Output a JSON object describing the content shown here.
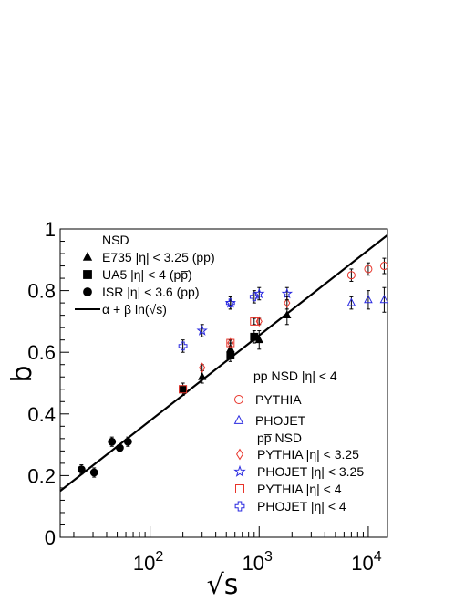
{
  "chart_data": {
    "type": "scatter",
    "title": "",
    "xlabel": "√s",
    "ylabel": "b",
    "xscale": "log",
    "xlim": [
      15,
      15000
    ],
    "ylim": [
      0,
      1
    ],
    "grid": false,
    "xticks": [
      {
        "value": 100,
        "base": "10",
        "exp": "2"
      },
      {
        "value": 1000,
        "base": "10",
        "exp": "3"
      },
      {
        "value": 10000,
        "base": "10",
        "exp": "4"
      }
    ],
    "yticks": [
      {
        "value": 0,
        "label": "0"
      },
      {
        "value": 0.2,
        "label": "0.2"
      },
      {
        "value": 0.4,
        "label": "0.4"
      },
      {
        "value": 0.6,
        "label": "0.6"
      },
      {
        "value": 0.8,
        "label": "0.8"
      },
      {
        "value": 1,
        "label": "1"
      }
    ],
    "fit_line": {
      "label": "α + β  ln(√s)",
      "x": [
        15,
        15000
      ],
      "y": [
        0.15,
        0.98
      ],
      "color": "#000000"
    },
    "series": [
      {
        "name": "E735 |η| < 3.25 (pp̅)",
        "marker": "triangle-filled",
        "color": "#000000",
        "x": [
          300,
          546,
          1000,
          1800
        ],
        "y": [
          0.52,
          0.61,
          0.64,
          0.72
        ],
        "err": [
          0.02,
          0.02,
          0.03,
          0.03
        ]
      },
      {
        "name": "UA5  |η| < 4 (pp̅)",
        "marker": "square-filled",
        "color": "#000000",
        "x": [
          200,
          546,
          900
        ],
        "y": [
          0.48,
          0.59,
          0.65
        ],
        "err": [
          0.02,
          0.02,
          0.02
        ]
      },
      {
        "name": "ISR  |η| < 3.6 (pp)",
        "marker": "circle-filled",
        "color": "#000000",
        "x": [
          23.5,
          30.7,
          44.7,
          52.8,
          62.7
        ],
        "y": [
          0.22,
          0.21,
          0.31,
          0.29,
          0.31
        ],
        "err": [
          0.015,
          0.015,
          0.015,
          0.01,
          0.015
        ]
      },
      {
        "name": "PYTHIA",
        "marker": "circle-open",
        "color": "#e8342a",
        "x": [
          7000,
          10000,
          14000
        ],
        "y": [
          0.85,
          0.87,
          0.88
        ],
        "err": [
          0.02,
          0.02,
          0.025
        ]
      },
      {
        "name": "PHOJET",
        "marker": "triangle-open",
        "color": "#2a2ae0",
        "x": [
          7000,
          10000,
          14000
        ],
        "y": [
          0.76,
          0.77,
          0.77
        ],
        "err": [
          0.02,
          0.03,
          0.04
        ]
      },
      {
        "name": "PYTHIA |η| < 3.25",
        "marker": "diamond-open",
        "color": "#e8342a",
        "x": [
          300,
          546,
          1000,
          1800
        ],
        "y": [
          0.55,
          0.63,
          0.7,
          0.76
        ],
        "err": [
          0.01,
          0.01,
          0.01,
          0.02
        ]
      },
      {
        "name": "PHOJET |η| < 3.25",
        "marker": "star-open",
        "color": "#2a2ae0",
        "x": [
          300,
          546,
          1000,
          1800
        ],
        "y": [
          0.67,
          0.76,
          0.79,
          0.79
        ],
        "err": [
          0.02,
          0.02,
          0.02,
          0.02
        ]
      },
      {
        "name": "PYTHIA |η| < 4",
        "marker": "square-open",
        "color": "#e8342a",
        "x": [
          200,
          546,
          900
        ],
        "y": [
          0.48,
          0.63,
          0.7
        ],
        "err": [
          0.01,
          0.01,
          0.01
        ]
      },
      {
        "name": "PHOJET |η| < 4",
        "marker": "cross-open",
        "color": "#2a2ae0",
        "x": [
          200,
          546,
          900
        ],
        "y": [
          0.62,
          0.76,
          0.78
        ],
        "err": [
          0.02,
          0.02,
          0.02
        ]
      }
    ],
    "legends": [
      {
        "header": "NSD",
        "entries": [
          {
            "series": 0,
            "label": "E735 |η| < 3.25 (pp̅)"
          },
          {
            "series": 1,
            "label": "UA5  |η| < 4 (pp̅)"
          },
          {
            "series": 2,
            "label": "ISR  |η| < 3.6 (pp)"
          },
          {
            "series": "fit",
            "label": "α + β  ln(√s)"
          }
        ]
      },
      {
        "header": "pp NSD |η| < 4",
        "entries": [
          {
            "series": 3,
            "label": "PYTHIA"
          },
          {
            "series": 4,
            "label": "PHOJET"
          }
        ]
      },
      {
        "header": "pp̅ NSD",
        "entries": [
          {
            "series": 5,
            "label": "PYTHIA |η| < 3.25"
          },
          {
            "series": 6,
            "label": "PHOJET |η| < 3.25"
          },
          {
            "series": 7,
            "label": "PYTHIA |η| < 4"
          },
          {
            "series": 8,
            "label": "PHOJET |η| < 4"
          }
        ]
      }
    ]
  }
}
